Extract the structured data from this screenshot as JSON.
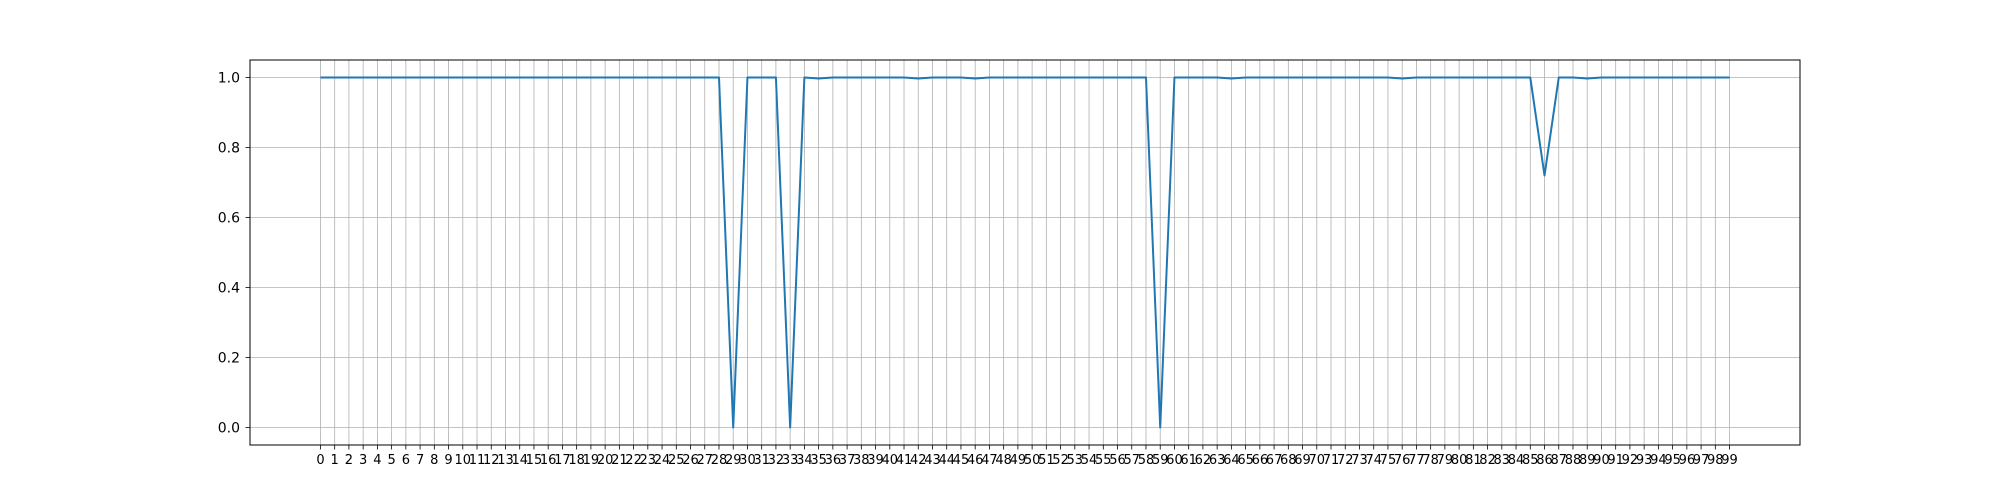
{
  "chart_data": {
    "type": "line",
    "title": "",
    "xlabel": "",
    "ylabel": "",
    "x": [
      0,
      1,
      2,
      3,
      4,
      5,
      6,
      7,
      8,
      9,
      10,
      11,
      12,
      13,
      14,
      15,
      16,
      17,
      18,
      19,
      20,
      21,
      22,
      23,
      24,
      25,
      26,
      27,
      28,
      29,
      30,
      31,
      32,
      33,
      34,
      35,
      36,
      37,
      38,
      39,
      40,
      41,
      42,
      43,
      44,
      45,
      46,
      47,
      48,
      49,
      50,
      51,
      52,
      53,
      54,
      55,
      56,
      57,
      58,
      59,
      60,
      61,
      62,
      63,
      64,
      65,
      66,
      67,
      68,
      69,
      70,
      71,
      72,
      73,
      74,
      75,
      76,
      77,
      78,
      79,
      80,
      81,
      82,
      83,
      84,
      85,
      86,
      87,
      88,
      89,
      90,
      91,
      92,
      93,
      94,
      95,
      96,
      97,
      98,
      99
    ],
    "series": [
      {
        "name": "",
        "color": "#1f77b4",
        "values": [
          1,
          1,
          1,
          1,
          1,
          1,
          1,
          1,
          1,
          1,
          1,
          1,
          1,
          1,
          1,
          1,
          1,
          1,
          1,
          1,
          1,
          1,
          1,
          1,
          1,
          1,
          1,
          1,
          1,
          0,
          1,
          1,
          1,
          0,
          1,
          0.997,
          1,
          1,
          1,
          1,
          1,
          1,
          0.997,
          1,
          1,
          1,
          0.997,
          1,
          1,
          1,
          1,
          1,
          1,
          1,
          1,
          1,
          1,
          1,
          1,
          0,
          1,
          1,
          1,
          1,
          0.997,
          1,
          1,
          1,
          1,
          1,
          1,
          1,
          1,
          1,
          1,
          1,
          0.997,
          1,
          1,
          1,
          1,
          1,
          1,
          1,
          1,
          1,
          0.72,
          1,
          1,
          0.997,
          1,
          1,
          1,
          1,
          1,
          1,
          1,
          1,
          1,
          1
        ]
      }
    ],
    "xlim": [
      -4.95,
      103.95
    ],
    "ylim": [
      -0.05,
      1.05
    ],
    "x_ticks": [
      "0",
      "1",
      "2",
      "3",
      "4",
      "5",
      "6",
      "7",
      "8",
      "9",
      "10",
      "11",
      "12",
      "13",
      "14",
      "15",
      "16",
      "17",
      "18",
      "19",
      "20",
      "21",
      "22",
      "23",
      "24",
      "25",
      "26",
      "27",
      "28",
      "29",
      "30",
      "31",
      "32",
      "33",
      "34",
      "35",
      "36",
      "37",
      "38",
      "39",
      "40",
      "41",
      "42",
      "43",
      "44",
      "45",
      "46",
      "47",
      "48",
      "49",
      "50",
      "51",
      "52",
      "53",
      "54",
      "55",
      "56",
      "57",
      "58",
      "59",
      "60",
      "61",
      "62",
      "63",
      "64",
      "65",
      "66",
      "67",
      "68",
      "69",
      "70",
      "71",
      "72",
      "73",
      "74",
      "75",
      "76",
      "77",
      "78",
      "79",
      "80",
      "81",
      "82",
      "83",
      "84",
      "85",
      "86",
      "87",
      "88",
      "89",
      "90",
      "91",
      "92",
      "93",
      "94",
      "95",
      "96",
      "97",
      "98",
      "99"
    ],
    "y_ticks": [
      "0.0",
      "0.2",
      "0.4",
      "0.6",
      "0.8",
      "1.0"
    ],
    "grid": true,
    "legend": "none"
  }
}
